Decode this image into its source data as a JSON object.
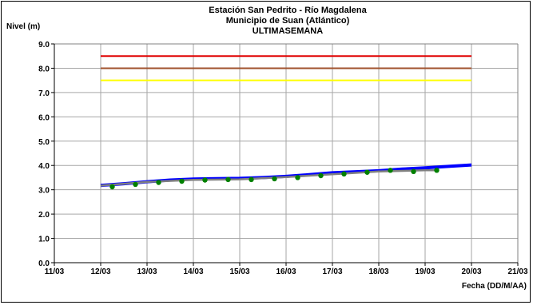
{
  "chart_data": {
    "type": "line",
    "title": "Estación San Pedrito - Río Magdalena",
    "subtitle": "Municipio de Suan (Atlántico)",
    "subtitle2": "ULTIMASEMANA",
    "ylabel": "Nivel (m)",
    "xlabel": "Fecha (DD/M/AA)",
    "x_ticks": [
      "11/03",
      "12/03",
      "13/03",
      "14/03",
      "15/03",
      "16/03",
      "17/03",
      "18/03",
      "19/03",
      "20/03",
      "21/03"
    ],
    "y_ticks": [
      "0.0",
      "1.0",
      "2.0",
      "3.0",
      "4.0",
      "5.0",
      "6.0",
      "7.0",
      "8.0",
      "9.0"
    ],
    "xlim": [
      0,
      10
    ],
    "ylim": [
      0,
      9
    ],
    "grid": true,
    "thresholds": [
      {
        "value": 8.5,
        "color": "#e00000",
        "x": [
          1.0,
          9.0
        ]
      },
      {
        "value": 8.0,
        "color": "#a0522d",
        "x": [
          1.0,
          9.0
        ]
      },
      {
        "value": 7.5,
        "color": "#ffff00",
        "x": [
          1.0,
          9.0
        ]
      }
    ],
    "series": [
      {
        "style": "line",
        "color": "#0000ff",
        "x": [
          1.0,
          1.5,
          2.0,
          2.5,
          3.0,
          3.5,
          4.0,
          4.5,
          5.0,
          5.5,
          6.0,
          6.4,
          7.0,
          7.5,
          8.0,
          8.5,
          9.0
        ],
        "y": [
          3.18,
          3.25,
          3.33,
          3.4,
          3.44,
          3.46,
          3.47,
          3.5,
          3.55,
          3.62,
          3.7,
          3.73,
          3.78,
          3.85,
          3.9,
          3.96,
          4.02
        ]
      },
      {
        "style": "line",
        "color": "#808080",
        "x": [
          1.0,
          2.0,
          3.0,
          4.0,
          5.0,
          6.0,
          7.0,
          8.0,
          8.3
        ],
        "y": [
          3.17,
          3.32,
          3.41,
          3.43,
          3.52,
          3.64,
          3.75,
          3.8,
          3.8
        ]
      },
      {
        "style": "points",
        "color": "#008000",
        "x": [
          1.25,
          1.75,
          2.25,
          2.75,
          3.25,
          3.75,
          4.25,
          4.75,
          5.25,
          5.75,
          6.25,
          6.75,
          7.25,
          7.75,
          8.25
        ],
        "y": [
          3.12,
          3.22,
          3.3,
          3.35,
          3.4,
          3.42,
          3.42,
          3.45,
          3.5,
          3.58,
          3.65,
          3.72,
          3.8,
          3.75,
          3.8
        ]
      }
    ]
  }
}
